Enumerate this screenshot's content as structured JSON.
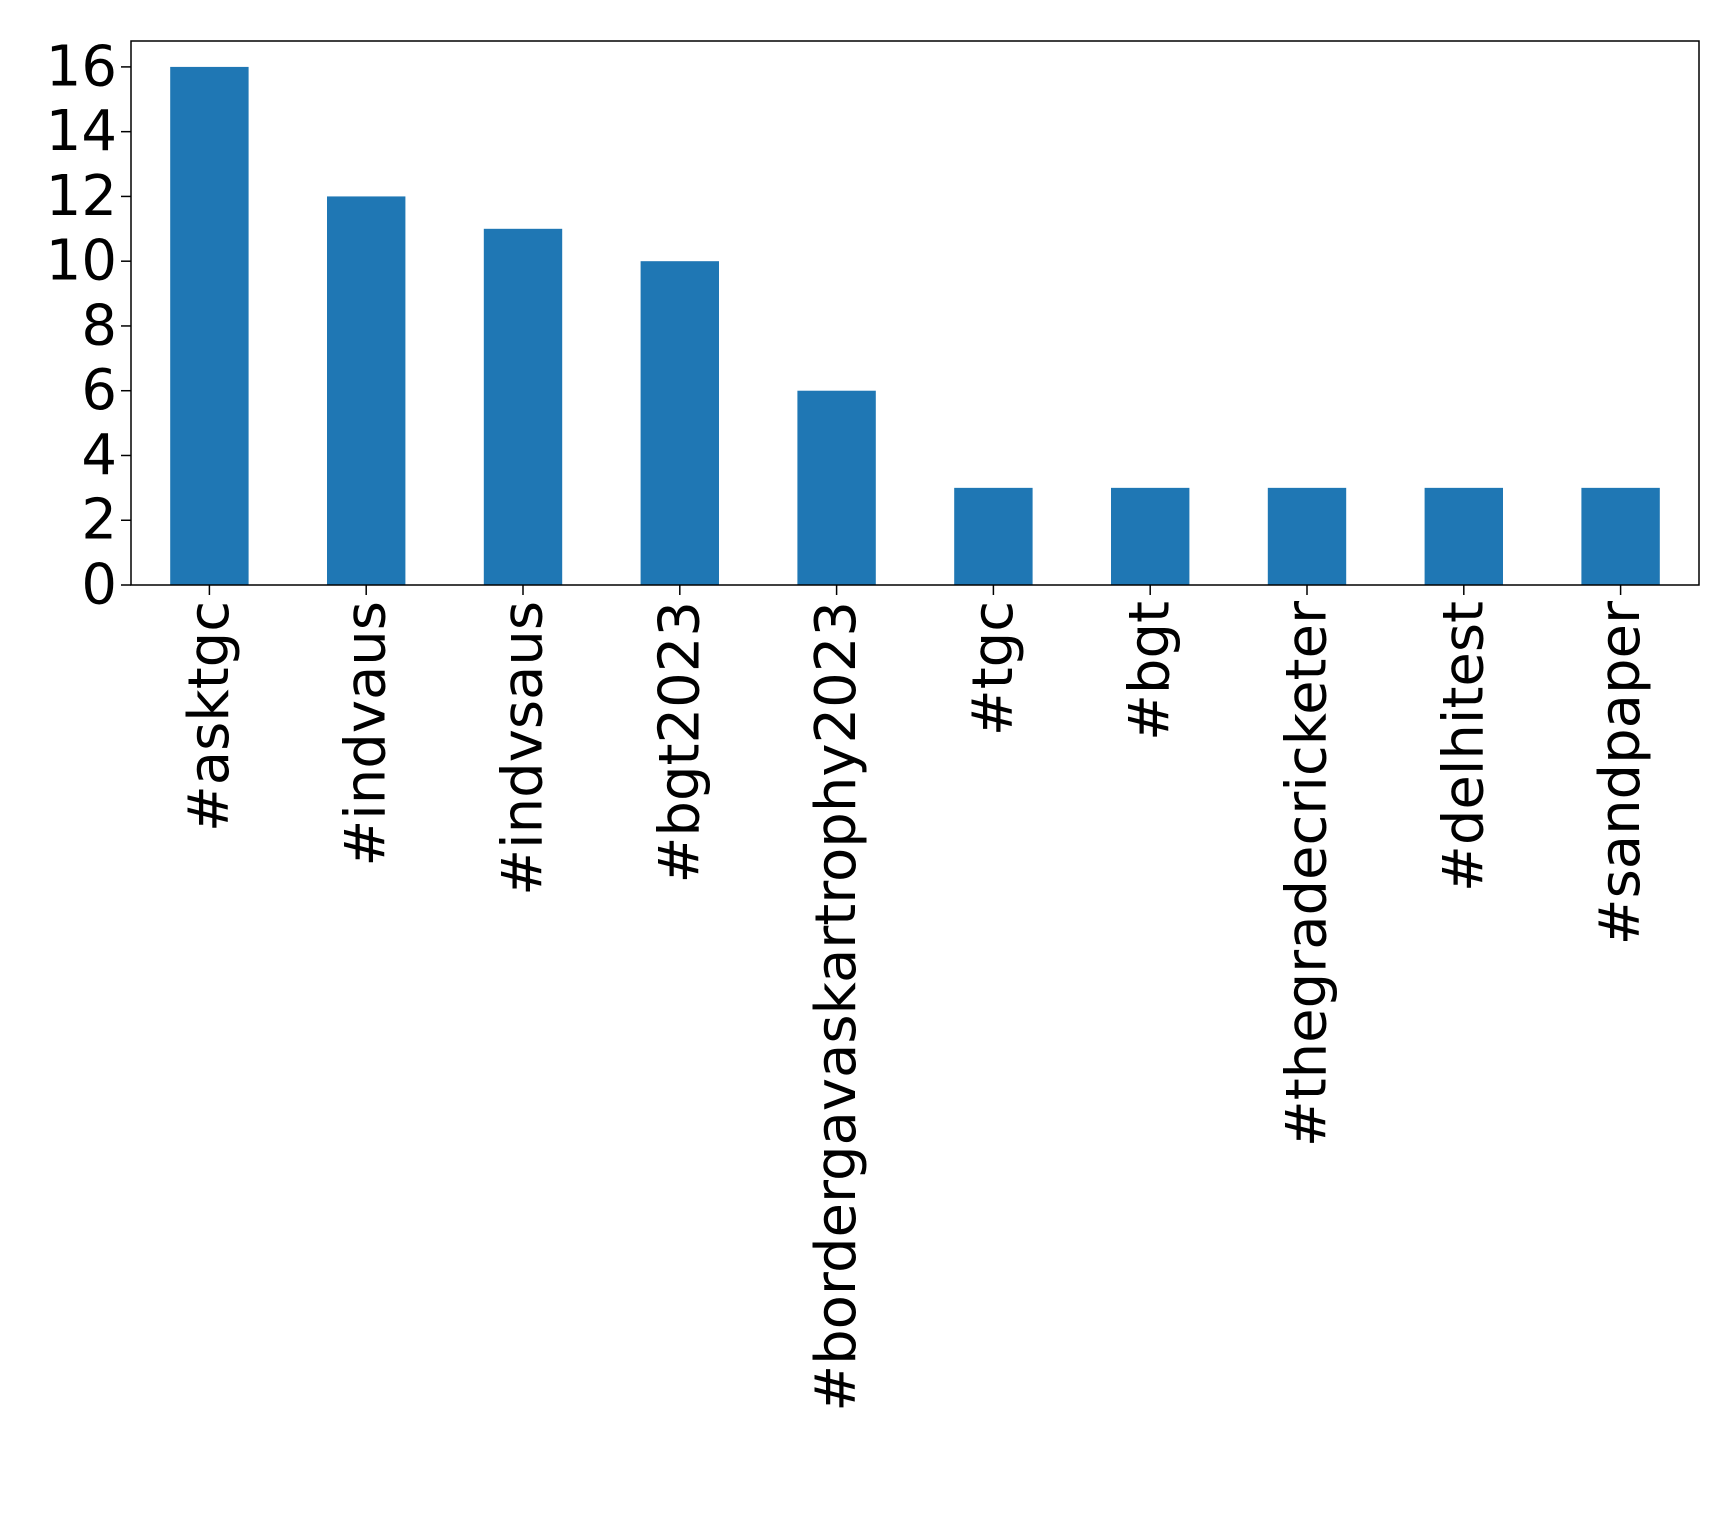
{
  "chart_data": {
    "type": "bar",
    "title": "",
    "xlabel": "",
    "ylabel": "",
    "categories": [
      "#asktgc",
      "#indvaus",
      "#indvsaus",
      "#bgt2023",
      "#bordergavaskartrophy2023",
      "#tgc",
      "#bgt",
      "#thegradecricketer",
      "#delhitest",
      "#sandpaper"
    ],
    "values": [
      16,
      12,
      11,
      10,
      6,
      3,
      3,
      3,
      3,
      3
    ],
    "ylim": [
      0,
      16.8
    ],
    "yticks": [
      0,
      2,
      4,
      6,
      8,
      10,
      12,
      14,
      16
    ],
    "bar_color": "#1f77b4",
    "grid": false,
    "legend": false
  }
}
